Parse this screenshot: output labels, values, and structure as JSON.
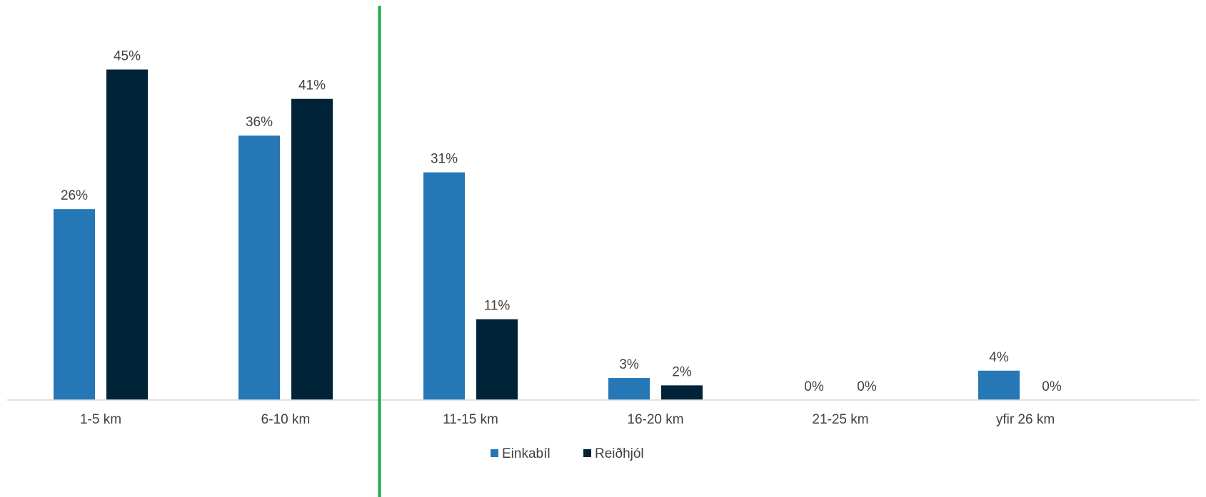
{
  "chart_data": {
    "type": "bar",
    "title": "",
    "xlabel": "",
    "ylabel": "",
    "categories": [
      "1-5 km",
      "6-10 km",
      "11-15 km",
      "16-20 km",
      "21-25 km",
      "yfir 26 km"
    ],
    "series": [
      {
        "name": "Einkabíl",
        "values": [
          26,
          36,
          31,
          3,
          0,
          4
        ],
        "labels": [
          "26%",
          "36%",
          "31%",
          "3%",
          "0%",
          "4%"
        ],
        "color": "#2577b5"
      },
      {
        "name": "Reiðhjól",
        "values": [
          45,
          41,
          11,
          2,
          0,
          0
        ],
        "labels": [
          "45%",
          "41%",
          "11%",
          "2%",
          "0%",
          "0%"
        ],
        "color": "#012338"
      }
    ],
    "ylim": [
      0,
      50
    ],
    "grid": false,
    "legend": "bottom-center",
    "divider": {
      "position_after_category": "6-10 km",
      "color": "#1aab45"
    },
    "axis_color": "#d9d9d9"
  }
}
